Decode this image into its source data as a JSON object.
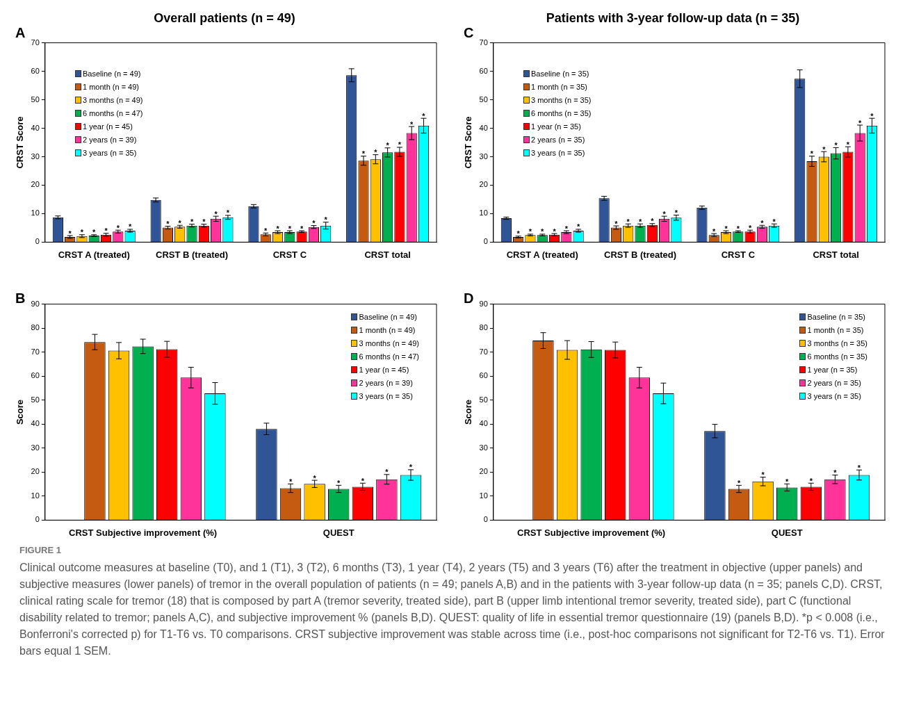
{
  "chart_data": [
    {
      "type": "bar",
      "title": "Overall patients (n = 49)",
      "ylabel": "CRST Score",
      "annotations": [
        "A"
      ],
      "categories": [
        "CRST A (treated)",
        "CRST B (treated)",
        "CRST C",
        "CRST total"
      ],
      "ylim": [
        0,
        70
      ],
      "yticks": [
        0,
        10,
        20,
        30,
        40,
        50,
        60,
        70
      ],
      "legend": "top left",
      "series": [
        {
          "name": "Baseline (n = 49)",
          "color": "#2f5597",
          "values": [
            8.7,
            14.8,
            12.6,
            58.6
          ],
          "errors": [
            0.5,
            0.7,
            0.6,
            2.3
          ]
        },
        {
          "name": "1 month (n = 49)",
          "color": "#c55a11",
          "values": [
            1.8,
            5.1,
            2.7,
            28.6
          ],
          "errors": [
            0.5,
            0.5,
            0.5,
            1.6
          ],
          "value_labels": [
            "*",
            "*",
            "*",
            "*"
          ]
        },
        {
          "name": "3 months (n = 49)",
          "color": "#ffc000",
          "values": [
            2.1,
            5.4,
            3.5,
            29.1
          ],
          "errors": [
            0.5,
            0.5,
            0.5,
            1.6
          ],
          "value_labels": [
            "*",
            "*",
            "*",
            "*"
          ]
        },
        {
          "name": "6 months (n = 47)",
          "color": "#00b050",
          "values": [
            2.3,
            5.8,
            3.5,
            31.5
          ],
          "errors": [
            0.3,
            0.5,
            0.5,
            1.6
          ],
          "value_labels": [
            "*",
            "*",
            "*",
            "*"
          ]
        },
        {
          "name": "1 year (n = 45)",
          "color": "#ff0000",
          "values": [
            2.6,
            5.8,
            3.7,
            31.7
          ],
          "errors": [
            0.5,
            0.5,
            0.3,
            1.6
          ],
          "value_labels": [
            "*",
            "*",
            "*",
            "*"
          ]
        },
        {
          "name": "2 years (n = 39)",
          "color": "#ff3399",
          "values": [
            3.7,
            8.2,
            5.3,
            38.3
          ],
          "errors": [
            0.5,
            0.9,
            0.5,
            2.3
          ],
          "value_labels": [
            "*",
            "*",
            "*",
            "*"
          ]
        },
        {
          "name": "3 years (n = 35)",
          "color": "#00ffff",
          "values": [
            4.0,
            8.7,
            5.8,
            40.9
          ],
          "errors": [
            0.5,
            0.7,
            1.2,
            2.6
          ],
          "value_labels": [
            "*",
            "*",
            "*",
            "*"
          ]
        }
      ]
    },
    {
      "type": "bar",
      "title": "Patients with 3-year follow-up data (n = 35)",
      "ylabel": "CRST Score",
      "annotations": [
        "C"
      ],
      "categories": [
        "CRST A (treated)",
        "CRST B (treated)",
        "CRST C",
        "CRST total"
      ],
      "ylim": [
        0,
        70
      ],
      "yticks": [
        0,
        10,
        20,
        30,
        40,
        50,
        60,
        70
      ],
      "legend": "top left",
      "series": [
        {
          "name": "Baseline (n = 35)",
          "color": "#2f5597",
          "values": [
            8.4,
            15.4,
            12.1,
            57.4
          ],
          "errors": [
            0.4,
            0.7,
            0.6,
            3.1
          ]
        },
        {
          "name": "1 month (n = 35)",
          "color": "#c55a11",
          "values": [
            1.8,
            5.1,
            2.5,
            28.4
          ],
          "errors": [
            0.3,
            0.6,
            0.5,
            1.8
          ],
          "value_labels": [
            "*",
            "*",
            "*",
            "*"
          ]
        },
        {
          "name": "3 months (n = 35)",
          "color": "#ffc000",
          "values": [
            2.5,
            5.8,
            3.5,
            30.0
          ],
          "errors": [
            0.3,
            0.6,
            0.5,
            1.8
          ],
          "value_labels": [
            "*",
            "*",
            "*",
            "*"
          ]
        },
        {
          "name": "6 months (n = 35)",
          "color": "#00b050",
          "values": [
            2.5,
            5.8,
            3.7,
            31.2
          ],
          "errors": [
            0.3,
            0.6,
            0.3,
            2.0
          ],
          "value_labels": [
            "*",
            "*",
            "*",
            "*"
          ]
        },
        {
          "name": "1 year (n = 35)",
          "color": "#ff0000",
          "values": [
            2.6,
            6.0,
            3.7,
            31.7
          ],
          "errors": [
            0.4,
            0.5,
            0.5,
            1.8
          ],
          "value_labels": [
            "*",
            "*",
            "*",
            "*"
          ]
        },
        {
          "name": "2 years (n = 35)",
          "color": "#ff3399",
          "values": [
            3.5,
            8.2,
            5.4,
            38.3
          ],
          "errors": [
            0.5,
            0.9,
            0.5,
            2.8
          ],
          "value_labels": [
            "*",
            "*",
            "*",
            "*"
          ]
        },
        {
          "name": "3 years (n = 35)",
          "color": "#00ffff",
          "values": [
            4.0,
            8.6,
            5.8,
            40.9
          ],
          "errors": [
            0.5,
            0.9,
            0.6,
            2.6
          ],
          "value_labels": [
            "*",
            "*",
            "*",
            "*"
          ]
        }
      ]
    },
    {
      "type": "bar",
      "ylabel": "Score",
      "annotations": [
        "B"
      ],
      "categories": [
        "CRST Subjective improvement (%)",
        "QUEST"
      ],
      "ylim": [
        0,
        90
      ],
      "yticks": [
        0,
        10,
        20,
        30,
        40,
        50,
        60,
        70,
        80,
        90
      ],
      "legend": "top right",
      "series": [
        {
          "name": "Baseline (n = 49)",
          "color": "#2f5597",
          "values": [
            null,
            38.0
          ],
          "errors": [
            null,
            2.4
          ]
        },
        {
          "name": "1 month (n = 49)",
          "color": "#c55a11",
          "values": [
            74.2,
            13.3
          ],
          "errors": [
            3.2,
            1.8
          ],
          "value_labels": [
            null,
            "*"
          ]
        },
        {
          "name": "3 months (n = 49)",
          "color": "#ffc000",
          "values": [
            70.6,
            15.1
          ],
          "errors": [
            3.4,
            1.5
          ],
          "value_labels": [
            null,
            "*"
          ]
        },
        {
          "name": "6 months (n = 47)",
          "color": "#00b050",
          "values": [
            72.4,
            13.0
          ],
          "errors": [
            3.0,
            1.5
          ],
          "value_labels": [
            null,
            "*"
          ]
        },
        {
          "name": "1 year (n = 45)",
          "color": "#ff0000",
          "values": [
            71.2,
            13.9
          ],
          "errors": [
            3.3,
            1.5
          ],
          "value_labels": [
            null,
            "*"
          ]
        },
        {
          "name": "2 years (n = 39)",
          "color": "#ff3399",
          "values": [
            59.4,
            17.0
          ],
          "errors": [
            4.3,
            2.0
          ],
          "value_labels": [
            null,
            "*"
          ]
        },
        {
          "name": "3 years (n = 35)",
          "color": "#00ffff",
          "values": [
            52.8,
            18.8
          ],
          "errors": [
            4.5,
            2.2
          ],
          "value_labels": [
            null,
            "*"
          ]
        }
      ]
    },
    {
      "type": "bar",
      "ylabel": "Score",
      "annotations": [
        "D",
        "FIGURE 1",
        "Clinical outcome measures at baseline (T0), and 1 (T1), 3 (T2), 6 months (T3), 1 year (T4), 2 years (T5) and 3 years (T6) after the treatment in objective (upper panels) and subjective measures (lower panels) of tremor in the overall population of patients (n = 49; panels A,B) and in the patients with 3-year follow-up data (n = 35; panels C,D). CRST, clinical rating scale for tremor (18) that is composed by part A (tremor severity, treated side), part B (upper limb intentional tremor severity, treated side), part C (functional disability related to tremor; panels A,C), and subjective improvement % (panels B,D). QUEST: quality of life in essential tremor questionnaire (19) (panels B,D). *p < 0.008 (i.e., Bonferroni's corrected p) for T1-T6 vs. T0 comparisons. CRST subjective improvement was stable across time (i.e., post-hoc comparisons not significant for T2-T6 vs. T1). Error bars equal 1 SEM."
      ],
      "categories": [
        "CRST Subjective improvement (%)",
        "QUEST"
      ],
      "ylim": [
        0,
        90
      ],
      "yticks": [
        0,
        10,
        20,
        30,
        40,
        50,
        60,
        70,
        80,
        90
      ],
      "legend": "top right",
      "series": [
        {
          "name": "Baseline (n = 35)",
          "color": "#2f5597",
          "values": [
            null,
            37.1
          ],
          "errors": [
            null,
            2.8
          ]
        },
        {
          "name": "1 month (n = 35)",
          "color": "#c55a11",
          "values": [
            74.8,
            13.0
          ],
          "errors": [
            3.3,
            1.5
          ],
          "value_labels": [
            null,
            "*"
          ]
        },
        {
          "name": "3 months (n = 35)",
          "color": "#ffc000",
          "values": [
            70.9,
            16.1
          ],
          "errors": [
            3.9,
            1.8
          ],
          "value_labels": [
            null,
            "*"
          ]
        },
        {
          "name": "6 months (n = 35)",
          "color": "#00b050",
          "values": [
            71.1,
            13.6
          ],
          "errors": [
            3.3,
            1.5
          ],
          "value_labels": [
            null,
            "*"
          ]
        },
        {
          "name": "1 year (n = 35)",
          "color": "#ff0000",
          "values": [
            70.9,
            13.9
          ],
          "errors": [
            3.3,
            1.5
          ],
          "value_labels": [
            null,
            "*"
          ]
        },
        {
          "name": "2 years (n = 35)",
          "color": "#ff3399",
          "values": [
            59.4,
            17.0
          ],
          "errors": [
            4.3,
            1.8
          ],
          "value_labels": [
            null,
            "*"
          ]
        },
        {
          "name": "3 years (n = 35)",
          "color": "#00ffff",
          "values": [
            52.8,
            18.8
          ],
          "errors": [
            4.3,
            2.1
          ],
          "value_labels": [
            null,
            "*"
          ]
        }
      ]
    }
  ]
}
